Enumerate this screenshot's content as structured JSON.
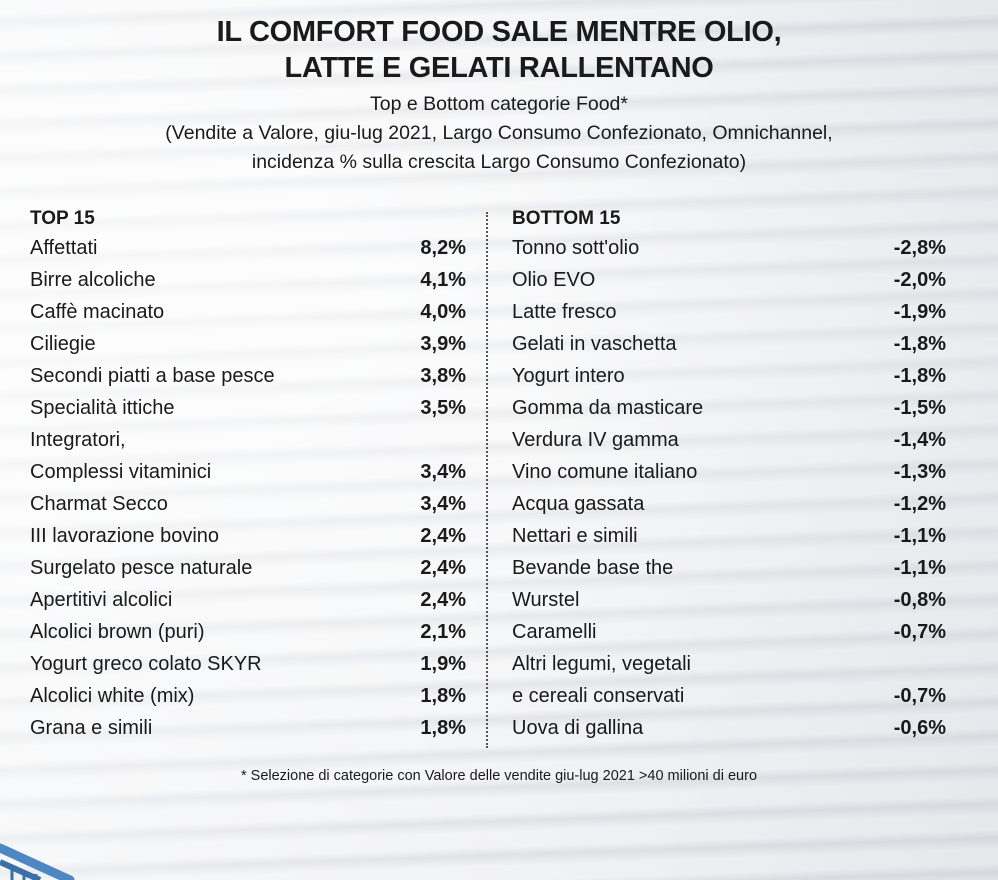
{
  "title_line1": "IL COMFORT FOOD SALE MENTRE OLIO,",
  "title_line2": "LATTE E GELATI RALLENTANO",
  "subtitle_line1": "Top e Bottom categorie Food*",
  "subtitle_line2": "(Vendite a Valore, giu-lug 2021, Largo Consumo Confezionato, Omnichannel,",
  "subtitle_line3": "incidenza % sulla crescita Largo Consumo Confezionato)",
  "top": {
    "header": "TOP 15",
    "rows": [
      {
        "label": "Affettati",
        "value": "8,2%"
      },
      {
        "label": "Birre alcoliche",
        "value": "4,1%"
      },
      {
        "label": "Caffè macinato",
        "value": "4,0%"
      },
      {
        "label": "Ciliegie",
        "value": "3,9%"
      },
      {
        "label": "Secondi piatti a base pesce",
        "value": "3,8%"
      },
      {
        "label": "Specialità ittiche",
        "value": "3,5%"
      },
      {
        "label": "Integratori,",
        "value": ""
      },
      {
        "label": "Complessi vitaminici",
        "value": "3,4%"
      },
      {
        "label": "Charmat Secco",
        "value": "3,4%"
      },
      {
        "label": "III lavorazione bovino",
        "value": "2,4%"
      },
      {
        "label": "Surgelato pesce naturale",
        "value": "2,4%"
      },
      {
        "label": "Apertitivi alcolici",
        "value": "2,4%"
      },
      {
        "label": "Alcolici brown (puri)",
        "value": "2,1%"
      },
      {
        "label": "Yogurt greco colato SKYR",
        "value": "1,9%"
      },
      {
        "label": "Alcolici white (mix)",
        "value": "1,8%"
      },
      {
        "label": "Grana e simili",
        "value": "1,8%"
      }
    ]
  },
  "bottom": {
    "header": "BOTTOM 15",
    "rows": [
      {
        "label": "Tonno sott'olio",
        "value": "-2,8%"
      },
      {
        "label": "Olio EVO",
        "value": "-2,0%"
      },
      {
        "label": "Latte fresco",
        "value": "-1,9%"
      },
      {
        "label": "Gelati in vaschetta",
        "value": "-1,8%"
      },
      {
        "label": "Yogurt intero",
        "value": "-1,8%"
      },
      {
        "label": "Gomma da masticare",
        "value": "-1,5%"
      },
      {
        "label": "Verdura IV gamma",
        "value": "-1,4%"
      },
      {
        "label": "Vino comune italiano",
        "value": "-1,3%"
      },
      {
        "label": "Acqua gassata",
        "value": "-1,2%"
      },
      {
        "label": "Nettari e simili",
        "value": "-1,1%"
      },
      {
        "label": "Bevande base the",
        "value": "-1,1%"
      },
      {
        "label": "Wurstel",
        "value": "-0,8%"
      },
      {
        "label": "Caramelli",
        "value": "-0,7%"
      },
      {
        "label": "Altri legumi, vegetali",
        "value": ""
      },
      {
        "label": "e cereali conservati",
        "value": "-0,7%"
      },
      {
        "label": "Uova di gallina",
        "value": "-0,6%"
      }
    ]
  },
  "footnote": "* Selezione di categorie con Valore delle vendite giu-lug 2021 >40 milioni di euro"
}
